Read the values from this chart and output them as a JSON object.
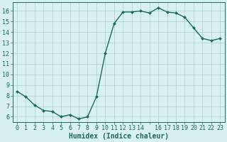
{
  "x": [
    0,
    1,
    2,
    3,
    4,
    5,
    6,
    7,
    8,
    9,
    10,
    11,
    12,
    13,
    14,
    15,
    16,
    17,
    18,
    19,
    20,
    21,
    22,
    23
  ],
  "y": [
    8.4,
    7.9,
    7.1,
    6.6,
    6.5,
    6.0,
    6.2,
    5.8,
    6.0,
    7.9,
    12.0,
    14.8,
    15.9,
    15.9,
    16.0,
    15.8,
    16.3,
    15.9,
    15.8,
    15.4,
    14.4,
    13.4,
    13.2,
    13.4
  ],
  "line_color": "#1a6b5a",
  "marker": "D",
  "marker_size": 2.0,
  "line_width": 1.0,
  "bg_color": "#d8f0f0",
  "grid_color": "#a8cece",
  "xlabel": "Humidex (Indice chaleur)",
  "xlabel_fontsize": 7,
  "tick_fontsize": 6,
  "ylim": [
    5.5,
    16.8
  ],
  "xlim": [
    -0.5,
    23.5
  ],
  "yticks": [
    6,
    7,
    8,
    9,
    10,
    11,
    12,
    13,
    14,
    15,
    16
  ],
  "xticks": [
    0,
    1,
    2,
    3,
    4,
    5,
    6,
    7,
    8,
    9,
    10,
    11,
    12,
    13,
    14,
    15,
    16,
    17,
    18,
    19,
    20,
    21,
    22,
    23
  ],
  "xtick_labels": [
    "0",
    "1",
    "2",
    "3",
    "4",
    "5",
    "6",
    "7",
    "8",
    "9",
    "10",
    "11",
    "12",
    "13",
    "14",
    "",
    "16",
    "17",
    "18",
    "19",
    "20",
    "21",
    "22",
    "23"
  ]
}
